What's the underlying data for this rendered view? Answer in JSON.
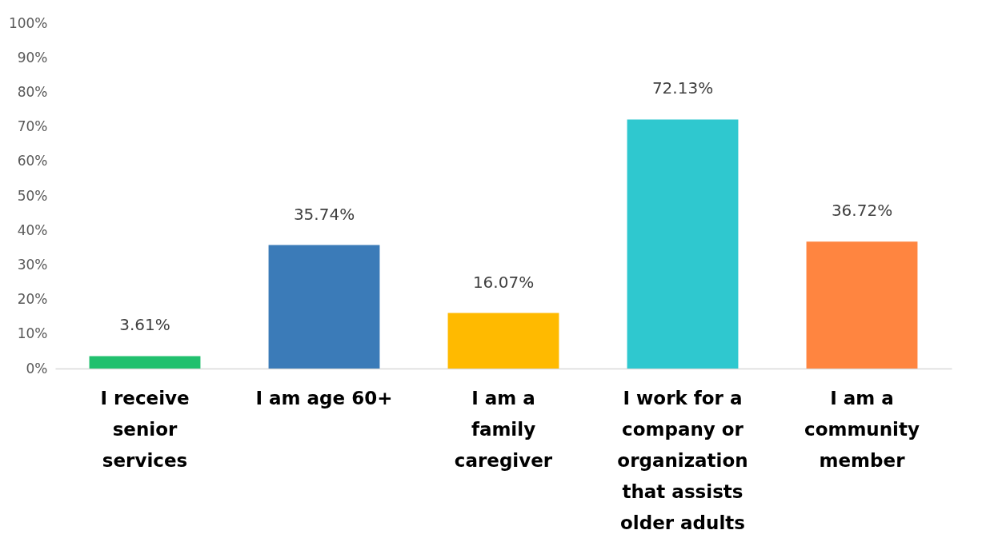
{
  "chart_data": {
    "type": "bar",
    "categories": [
      "I receive senior services",
      "I am age 60+",
      "I am a family caregiver",
      "I work for a company or organization that assists older adults",
      "I am a community member"
    ],
    "values": [
      3.61,
      35.74,
      16.07,
      72.13,
      36.72
    ],
    "colors": [
      "#21c06e",
      "#3b7bb8",
      "#ffba00",
      "#2fc8cf",
      "#ff8540"
    ],
    "value_labels": [
      "3.61%",
      "35.74%",
      "16.07%",
      "72.13%",
      "36.72%"
    ],
    "ylim": [
      0,
      100
    ],
    "yticks": [
      {
        "value": 0,
        "label": "0%"
      },
      {
        "value": 10,
        "label": "10%"
      },
      {
        "value": 20,
        "label": "20%"
      },
      {
        "value": 30,
        "label": "30%"
      },
      {
        "value": 40,
        "label": "40%"
      },
      {
        "value": 50,
        "label": "50%"
      },
      {
        "value": 60,
        "label": "60%"
      },
      {
        "value": 70,
        "label": "70%"
      },
      {
        "value": 80,
        "label": "80%"
      },
      {
        "value": 90,
        "label": "90%"
      },
      {
        "value": 100,
        "label": "100%"
      }
    ],
    "grid": false
  }
}
